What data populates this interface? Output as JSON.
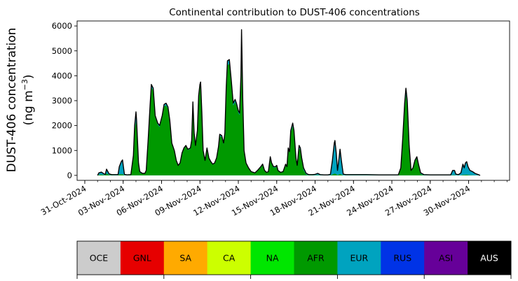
{
  "chart_data": {
    "type": "area",
    "title": "Continental contribution to DUST-406 concentrations",
    "ylabel_line1": "DUST-406 concentration",
    "ylabel_line2_prefix": "(ng m",
    "ylabel_line2_exp": "−3",
    "ylabel_line2_suffix": ")",
    "ylim": [
      -200,
      6200
    ],
    "yticks": [
      0,
      1000,
      2000,
      3000,
      4000,
      5000,
      6000
    ],
    "xlim": [
      -0.6,
      33.2
    ],
    "xticks": [
      {
        "v": 0,
        "label": "31-Oct-2024"
      },
      {
        "v": 3,
        "label": "03-Nov-2024"
      },
      {
        "v": 6,
        "label": "06-Nov-2024"
      },
      {
        "v": 9,
        "label": "09-Nov-2024"
      },
      {
        "v": 12,
        "label": "12-Nov-2024"
      },
      {
        "v": 15,
        "label": "15-Nov-2024"
      },
      {
        "v": 18,
        "label": "18-Nov-2024"
      },
      {
        "v": 21,
        "label": "21-Nov-2024"
      },
      {
        "v": 24,
        "label": "24-Nov-2024"
      },
      {
        "v": 27,
        "label": "27-Nov-2024"
      },
      {
        "v": 30,
        "label": "30-Nov-2024"
      }
    ],
    "grid": false,
    "total": [
      [
        1.0,
        0
      ],
      [
        1.1,
        100
      ],
      [
        1.3,
        130
      ],
      [
        1.5,
        60
      ],
      [
        1.6,
        40
      ],
      [
        1.7,
        250
      ],
      [
        1.9,
        60
      ],
      [
        2.1,
        30
      ],
      [
        2.6,
        30
      ],
      [
        2.7,
        350
      ],
      [
        2.85,
        550
      ],
      [
        2.95,
        620
      ],
      [
        3.1,
        40
      ],
      [
        3.3,
        20
      ],
      [
        3.6,
        30
      ],
      [
        3.8,
        800
      ],
      [
        3.9,
        2000
      ],
      [
        4.0,
        2550
      ],
      [
        4.05,
        2200
      ],
      [
        4.2,
        500
      ],
      [
        4.3,
        150
      ],
      [
        4.5,
        80
      ],
      [
        4.7,
        80
      ],
      [
        4.8,
        200
      ],
      [
        4.95,
        1400
      ],
      [
        5.1,
        2800
      ],
      [
        5.2,
        3650
      ],
      [
        5.35,
        3500
      ],
      [
        5.5,
        2400
      ],
      [
        5.7,
        2100
      ],
      [
        5.85,
        2000
      ],
      [
        6.05,
        2400
      ],
      [
        6.2,
        2850
      ],
      [
        6.35,
        2900
      ],
      [
        6.5,
        2750
      ],
      [
        6.65,
        2200
      ],
      [
        6.8,
        1300
      ],
      [
        7.0,
        1000
      ],
      [
        7.15,
        600
      ],
      [
        7.3,
        400
      ],
      [
        7.45,
        500
      ],
      [
        7.6,
        900
      ],
      [
        7.75,
        1100
      ],
      [
        7.9,
        1200
      ],
      [
        8.05,
        1050
      ],
      [
        8.25,
        1100
      ],
      [
        8.35,
        1400
      ],
      [
        8.45,
        2950
      ],
      [
        8.55,
        1700
      ],
      [
        8.65,
        1200
      ],
      [
        8.8,
        1800
      ],
      [
        8.9,
        3200
      ],
      [
        9.0,
        3650
      ],
      [
        9.05,
        3750
      ],
      [
        9.15,
        2500
      ],
      [
        9.25,
        1000
      ],
      [
        9.4,
        600
      ],
      [
        9.55,
        1100
      ],
      [
        9.7,
        700
      ],
      [
        9.85,
        550
      ],
      [
        10.0,
        450
      ],
      [
        10.15,
        500
      ],
      [
        10.3,
        700
      ],
      [
        10.45,
        1150
      ],
      [
        10.55,
        1650
      ],
      [
        10.7,
        1600
      ],
      [
        10.85,
        1300
      ],
      [
        10.95,
        1700
      ],
      [
        11.05,
        3500
      ],
      [
        11.15,
        4600
      ],
      [
        11.3,
        4650
      ],
      [
        11.45,
        3800
      ],
      [
        11.6,
        2900
      ],
      [
        11.75,
        3050
      ],
      [
        11.85,
        2900
      ],
      [
        12.0,
        2600
      ],
      [
        12.1,
        2500
      ],
      [
        12.2,
        4000
      ],
      [
        12.25,
        5850
      ],
      [
        12.35,
        3000
      ],
      [
        12.45,
        1000
      ],
      [
        12.6,
        500
      ],
      [
        12.8,
        300
      ],
      [
        13.0,
        150
      ],
      [
        13.3,
        100
      ],
      [
        13.5,
        200
      ],
      [
        13.75,
        350
      ],
      [
        13.9,
        450
      ],
      [
        14.05,
        200
      ],
      [
        14.2,
        120
      ],
      [
        14.35,
        150
      ],
      [
        14.5,
        750
      ],
      [
        14.6,
        500
      ],
      [
        14.75,
        350
      ],
      [
        14.9,
        350
      ],
      [
        15.0,
        400
      ],
      [
        15.1,
        200
      ],
      [
        15.3,
        120
      ],
      [
        15.5,
        150
      ],
      [
        15.7,
        450
      ],
      [
        15.8,
        350
      ],
      [
        15.9,
        1100
      ],
      [
        16.0,
        950
      ],
      [
        16.1,
        1800
      ],
      [
        16.25,
        2100
      ],
      [
        16.35,
        1800
      ],
      [
        16.5,
        700
      ],
      [
        16.6,
        400
      ],
      [
        16.75,
        1200
      ],
      [
        16.85,
        1100
      ],
      [
        16.95,
        700
      ],
      [
        17.1,
        300
      ],
      [
        17.3,
        80
      ],
      [
        17.5,
        30
      ],
      [
        17.8,
        30
      ],
      [
        18.0,
        40
      ],
      [
        18.2,
        80
      ],
      [
        18.4,
        30
      ],
      [
        18.7,
        20
      ],
      [
        19.0,
        20
      ],
      [
        19.2,
        40
      ],
      [
        19.35,
        600
      ],
      [
        19.5,
        1300
      ],
      [
        19.55,
        1400
      ],
      [
        19.65,
        900
      ],
      [
        19.75,
        200
      ],
      [
        19.85,
        600
      ],
      [
        19.95,
        1050
      ],
      [
        20.05,
        600
      ],
      [
        20.2,
        50
      ],
      [
        20.4,
        30
      ],
      [
        21.0,
        30
      ],
      [
        22.0,
        30
      ],
      [
        23.0,
        20
      ],
      [
        24.0,
        20
      ],
      [
        24.5,
        20
      ],
      [
        24.7,
        300
      ],
      [
        24.85,
        1500
      ],
      [
        25.0,
        2900
      ],
      [
        25.1,
        3500
      ],
      [
        25.2,
        3000
      ],
      [
        25.35,
        1200
      ],
      [
        25.5,
        200
      ],
      [
        25.65,
        300
      ],
      [
        25.8,
        600
      ],
      [
        25.95,
        750
      ],
      [
        26.1,
        400
      ],
      [
        26.25,
        100
      ],
      [
        26.5,
        30
      ],
      [
        27.0,
        20
      ],
      [
        28.0,
        20
      ],
      [
        28.6,
        20
      ],
      [
        28.75,
        200
      ],
      [
        28.9,
        200
      ],
      [
        29.0,
        50
      ],
      [
        29.2,
        30
      ],
      [
        29.4,
        100
      ],
      [
        29.55,
        450
      ],
      [
        29.65,
        300
      ],
      [
        29.75,
        500
      ],
      [
        29.85,
        550
      ],
      [
        29.95,
        350
      ],
      [
        30.1,
        200
      ],
      [
        30.3,
        150
      ],
      [
        30.5,
        80
      ],
      [
        30.75,
        30
      ],
      [
        30.9,
        0
      ]
    ],
    "afr_fraction": [
      [
        1.0,
        0.2
      ],
      [
        1.5,
        0.3
      ],
      [
        1.9,
        0.3
      ],
      [
        2.5,
        0.2
      ],
      [
        2.9,
        0.05
      ],
      [
        3.4,
        0.3
      ],
      [
        3.8,
        0.95
      ],
      [
        4.3,
        0.7
      ],
      [
        4.8,
        0.97
      ],
      [
        9.3,
        0.97
      ],
      [
        9.5,
        0.95
      ],
      [
        12.5,
        0.97
      ],
      [
        13.0,
        0.9
      ],
      [
        14.0,
        0.9
      ],
      [
        15.0,
        0.9
      ],
      [
        16.0,
        0.95
      ],
      [
        17.0,
        0.9
      ],
      [
        17.3,
        0.3
      ],
      [
        18.0,
        0.2
      ],
      [
        19.0,
        0.1
      ],
      [
        19.3,
        0.05
      ],
      [
        20.2,
        0.05
      ],
      [
        20.5,
        0.05
      ],
      [
        24.5,
        0.05
      ],
      [
        24.7,
        0.9
      ],
      [
        25.5,
        0.95
      ],
      [
        26.1,
        0.9
      ],
      [
        26.4,
        0.1
      ],
      [
        28.0,
        0.05
      ],
      [
        29.0,
        0.05
      ],
      [
        30.9,
        0.05
      ]
    ],
    "legend": [
      {
        "label": "OCE",
        "color": "#cccccc",
        "text_color": "#000000"
      },
      {
        "label": "GNL",
        "color": "#e60000",
        "text_color": "#000000"
      },
      {
        "label": "SA",
        "color": "#ffaa00",
        "text_color": "#000000"
      },
      {
        "label": "CA",
        "color": "#ccff00",
        "text_color": "#000000"
      },
      {
        "label": "NA",
        "color": "#00e600",
        "text_color": "#000000"
      },
      {
        "label": "AFR",
        "color": "#009900",
        "text_color": "#000000"
      },
      {
        "label": "EUR",
        "color": "#00a3bf",
        "text_color": "#000000"
      },
      {
        "label": "RUS",
        "color": "#0033e6",
        "text_color": "#000000"
      },
      {
        "label": "ASI",
        "color": "#660099",
        "text_color": "#000000"
      },
      {
        "label": "AUS",
        "color": "#000000",
        "text_color": "#ffffff"
      }
    ]
  }
}
